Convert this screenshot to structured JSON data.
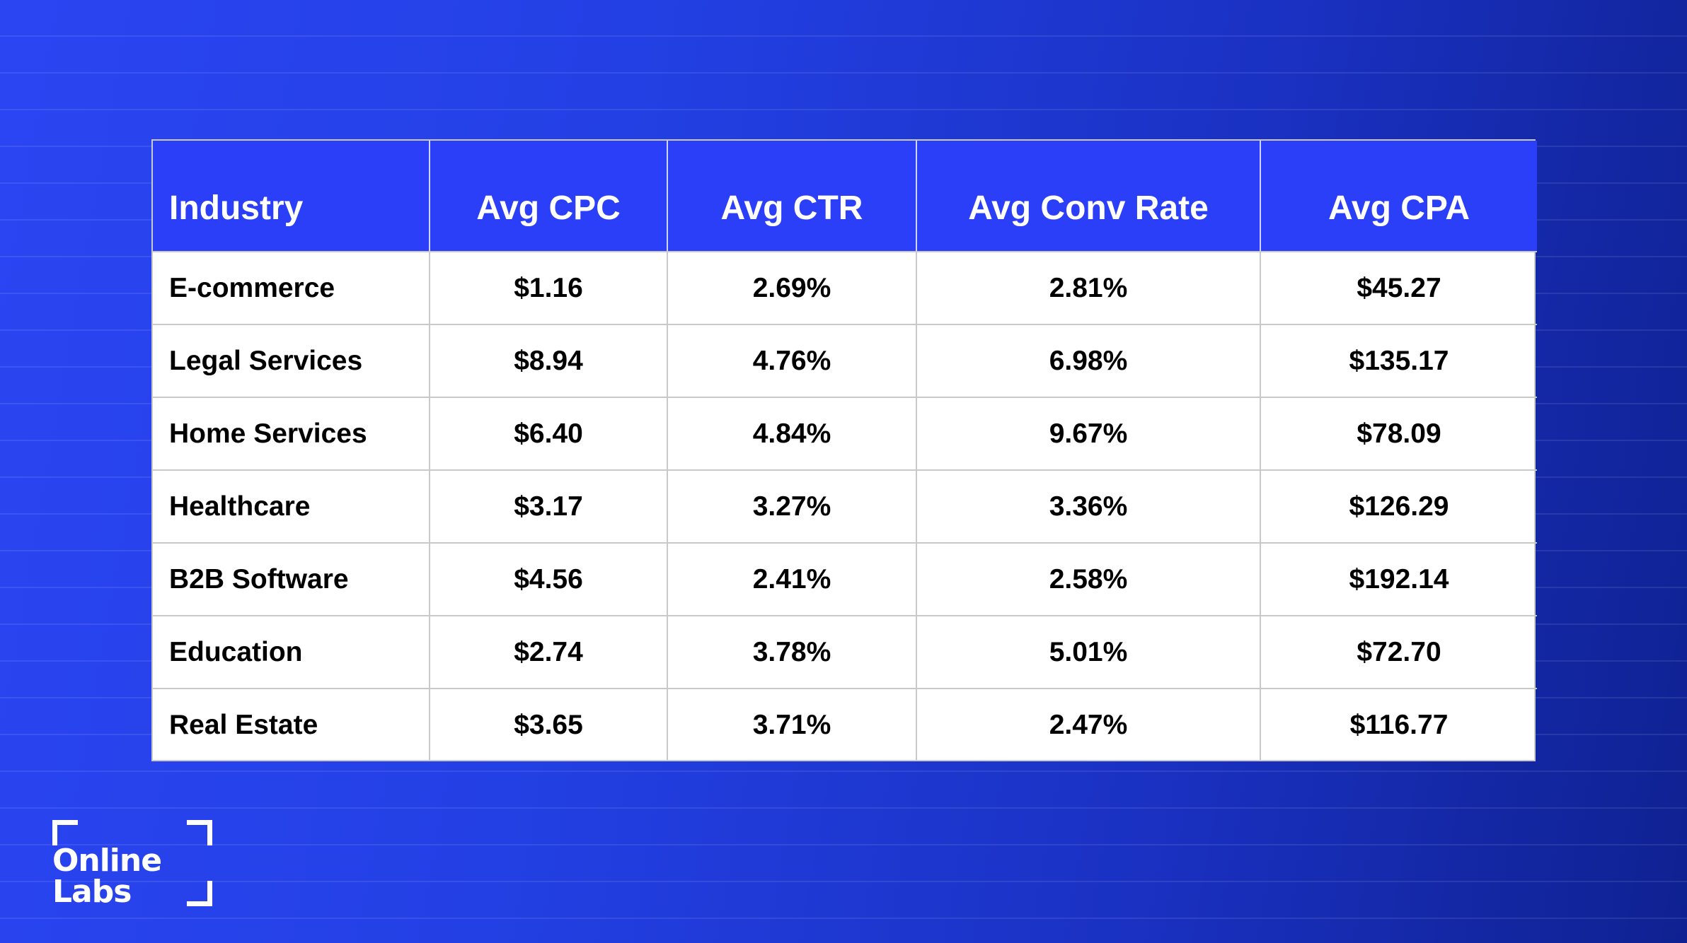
{
  "brand": {
    "logo_line1": "Online",
    "logo_line2": "Labs",
    "accent": "#2a3ff7",
    "background": "#2340e4"
  },
  "chart_data": {
    "type": "table",
    "columns": [
      "Industry",
      "Avg CPC",
      "Avg CTR",
      "Avg Conv Rate",
      "Avg CPA"
    ],
    "rows": [
      [
        "E-commerce",
        "$1.16",
        "2.69%",
        "2.81%",
        "$45.27"
      ],
      [
        "Legal Services",
        "$8.94",
        "4.76%",
        "6.98%",
        "$135.17"
      ],
      [
        "Home Services",
        "$6.40",
        "4.84%",
        "9.67%",
        "$78.09"
      ],
      [
        "Healthcare",
        "$3.17",
        "3.27%",
        "3.36%",
        "$126.29"
      ],
      [
        "B2B Software",
        "$4.56",
        "2.41%",
        "2.58%",
        "$192.14"
      ],
      [
        "Education",
        "$2.74",
        "3.78%",
        "5.01%",
        "$72.70"
      ],
      [
        "Real Estate",
        "$3.65",
        "3.71%",
        "2.47%",
        "$116.77"
      ]
    ]
  }
}
